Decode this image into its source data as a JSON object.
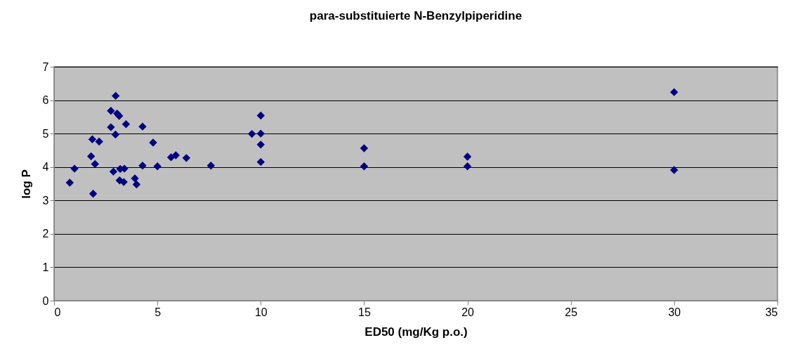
{
  "chart_data": {
    "type": "scatter",
    "title": "para-substituierte N-Benzylpiperidine",
    "xlabel": "ED50 (mg/Kg p.o.)",
    "ylabel": "log P",
    "x": [
      0.76,
      0.99,
      1.89,
      1.79,
      1.85,
      1.98,
      2.18,
      2.75,
      2.75,
      2.98,
      3.05,
      3.15,
      2.97,
      2.87,
      3.17,
      3.2,
      3.37,
      3.4,
      3.48,
      3.91,
      3.99,
      4.28,
      4.28,
      4.79,
      5.0,
      5.66,
      5.89,
      6.4,
      7.59,
      9.57,
      10,
      10,
      10,
      10,
      15,
      15,
      20,
      20,
      30,
      30
    ],
    "series": [
      {
        "color": "#000080",
        "values": [
          3.53,
          3.95,
          3.2,
          4.32,
          4.83,
          4.09,
          4.76,
          5.19,
          5.68,
          6.13,
          5.6,
          5.53,
          4.97,
          3.86,
          3.6,
          3.94,
          3.55,
          3.95,
          5.28,
          3.66,
          3.48,
          4.04,
          5.21,
          4.73,
          4.02,
          4.29,
          4.35,
          4.27,
          4.04,
          4.99,
          5.54,
          5.0,
          4.67,
          4.15,
          4.56,
          4.02,
          4.31,
          4.02,
          6.24,
          3.91
        ]
      }
    ],
    "xlim": [
      0,
      35
    ],
    "xticks": [
      0,
      5,
      10,
      15,
      20,
      25,
      30,
      35
    ],
    "ylim": [
      0,
      7
    ],
    "yticks": [
      0,
      1,
      2,
      3,
      4,
      5,
      6,
      7
    ],
    "grid": "y",
    "marker": "diamond",
    "legend": false
  }
}
